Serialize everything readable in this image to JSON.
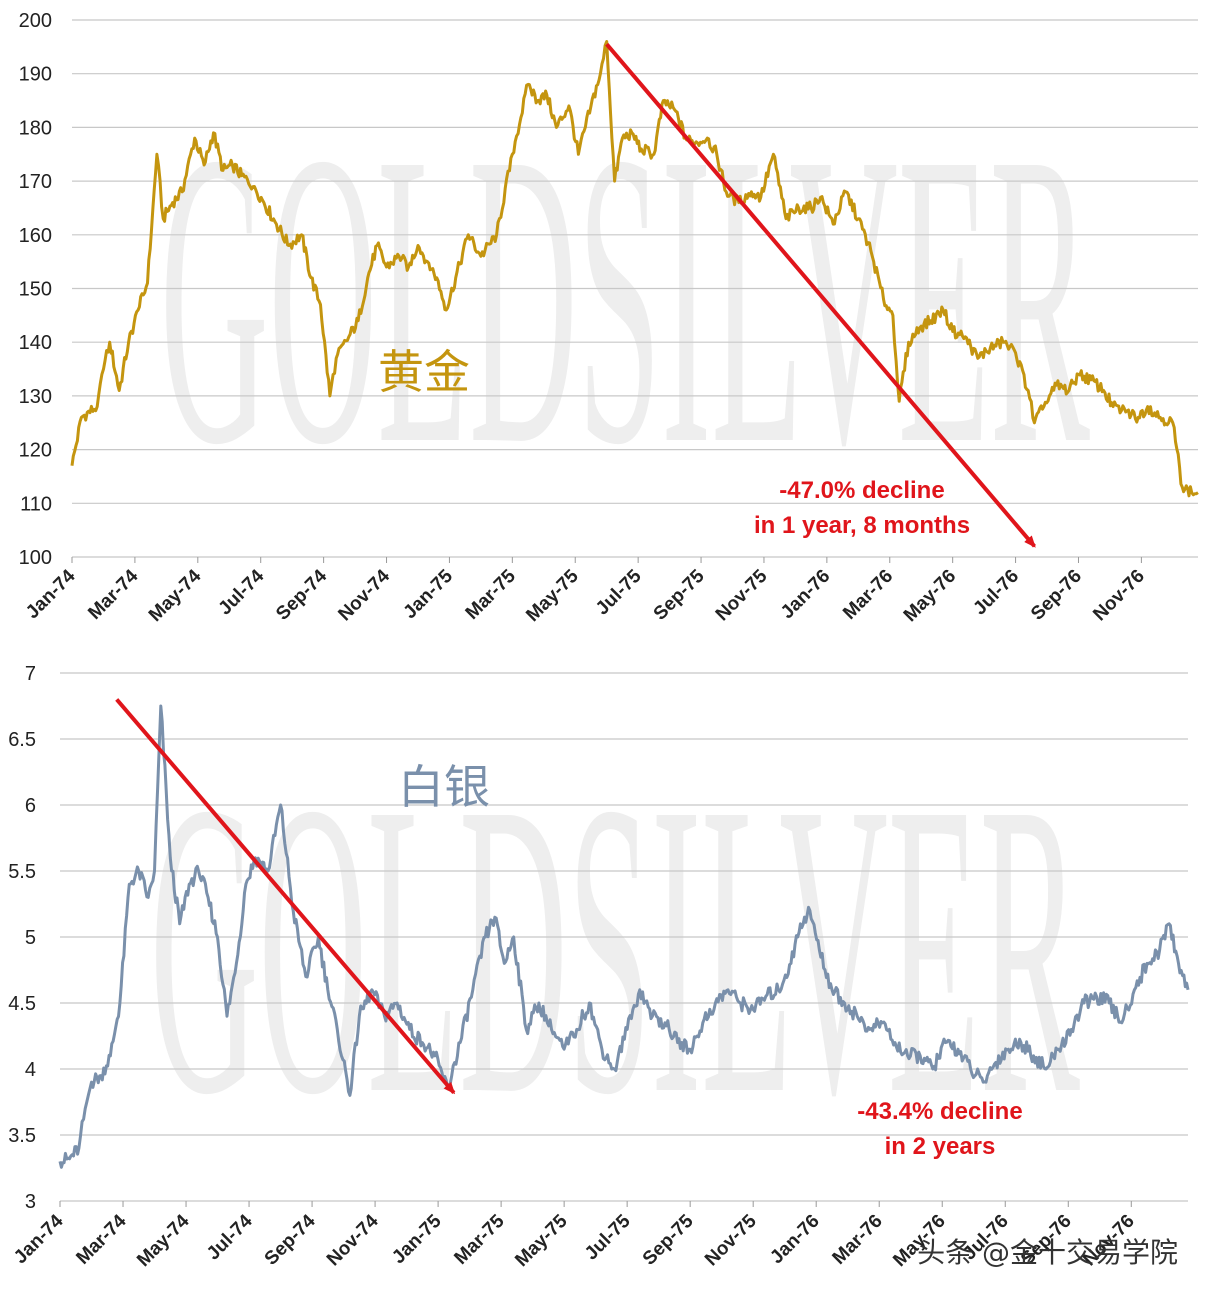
{
  "watermark": "GOLDSILVER",
  "credit": "头条 @金十交易学院",
  "chart_data": [
    {
      "type": "line",
      "id": "gold",
      "label": "黄金",
      "color": "#c4950f",
      "ylim": [
        100,
        200
      ],
      "yticks": [
        "100",
        "110",
        "120",
        "130",
        "140",
        "150",
        "160",
        "170",
        "180",
        "190",
        "200"
      ],
      "xlim": [
        0,
        35.8
      ],
      "xticks": [
        "Jan-74",
        "Mar-74",
        "May-74",
        "Jul-74",
        "Sep-74",
        "Nov-74",
        "Jan-75",
        "Mar-75",
        "May-75",
        "Jul-75",
        "Sep-75",
        "Nov-75",
        "Jan-76",
        "Mar-76",
        "May-76",
        "Jul-76",
        "Sep-76",
        "Nov-76"
      ],
      "x_unit": "months since Jan-74",
      "anchors": [
        [
          0,
          117
        ],
        [
          0.3,
          126
        ],
        [
          0.8,
          128
        ],
        [
          1.0,
          135
        ],
        [
          1.2,
          140
        ],
        [
          1.5,
          131
        ],
        [
          1.8,
          140
        ],
        [
          2.1,
          146
        ],
        [
          2.4,
          151
        ],
        [
          2.7,
          175
        ],
        [
          2.9,
          163
        ],
        [
          3.2,
          166
        ],
        [
          3.5,
          168
        ],
        [
          3.9,
          178
        ],
        [
          4.2,
          173
        ],
        [
          4.5,
          179
        ],
        [
          4.8,
          172
        ],
        [
          5.1,
          173
        ],
        [
          5.4,
          171
        ],
        [
          5.8,
          169
        ],
        [
          6.1,
          166
        ],
        [
          6.5,
          162
        ],
        [
          6.9,
          158
        ],
        [
          7.3,
          160
        ],
        [
          7.6,
          152
        ],
        [
          7.9,
          147
        ],
        [
          8.2,
          130
        ],
        [
          8.4,
          137
        ],
        [
          8.8,
          141
        ],
        [
          9.1,
          144
        ],
        [
          9.4,
          152
        ],
        [
          9.7,
          158
        ],
        [
          10.0,
          154
        ],
        [
          10.4,
          156
        ],
        [
          10.7,
          154
        ],
        [
          11.0,
          158
        ],
        [
          11.3,
          155
        ],
        [
          11.6,
          152
        ],
        [
          11.9,
          146
        ],
        [
          12.2,
          152
        ],
        [
          12.6,
          160
        ],
        [
          13.0,
          156
        ],
        [
          13.5,
          160
        ],
        [
          14.0,
          175
        ],
        [
          14.5,
          188
        ],
        [
          14.8,
          185
        ],
        [
          15.1,
          186
        ],
        [
          15.4,
          180
        ],
        [
          15.8,
          184
        ],
        [
          16.1,
          175
        ],
        [
          16.5,
          184
        ],
        [
          16.8,
          190
        ],
        [
          17.0,
          196
        ],
        [
          17.25,
          170
        ],
        [
          17.5,
          178
        ],
        [
          17.8,
          179
        ],
        [
          18.1,
          176
        ],
        [
          18.5,
          175
        ],
        [
          18.8,
          185
        ],
        [
          19.2,
          183
        ],
        [
          19.5,
          178
        ],
        [
          19.8,
          177
        ],
        [
          20.2,
          178
        ],
        [
          20.5,
          175
        ],
        [
          20.8,
          168
        ],
        [
          21.2,
          166
        ],
        [
          21.6,
          168
        ],
        [
          21.9,
          167
        ],
        [
          22.3,
          175
        ],
        [
          22.7,
          163
        ],
        [
          23.1,
          165
        ],
        [
          23.5,
          165
        ],
        [
          23.8,
          167
        ],
        [
          24.2,
          162
        ],
        [
          24.6,
          168
        ],
        [
          25.0,
          163
        ],
        [
          25.4,
          157
        ],
        [
          25.8,
          148
        ],
        [
          26.1,
          145
        ],
        [
          26.3,
          129
        ],
        [
          26.6,
          140
        ],
        [
          27.0,
          143
        ],
        [
          27.3,
          144
        ],
        [
          27.7,
          146
        ],
        [
          28.0,
          142
        ],
        [
          28.4,
          141
        ],
        [
          28.8,
          137
        ],
        [
          29.2,
          139
        ],
        [
          29.6,
          140
        ],
        [
          30.0,
          138
        ],
        [
          30.4,
          131
        ],
        [
          30.6,
          125
        ],
        [
          30.9,
          128
        ],
        [
          31.3,
          132
        ],
        [
          31.7,
          131
        ],
        [
          32.0,
          134
        ],
        [
          32.4,
          133
        ],
        [
          32.8,
          131
        ],
        [
          33.1,
          128
        ],
        [
          33.5,
          127
        ],
        [
          33.9,
          126
        ],
        [
          34.2,
          128
        ],
        [
          34.6,
          126
        ],
        [
          35.0,
          125
        ],
        [
          35.3,
          113
        ],
        [
          35.6,
          112
        ],
        [
          35.8,
          112
        ]
      ],
      "trend": {
        "from": [
          17.0,
          195.5
        ],
        "to": [
          30.6,
          102
        ]
      },
      "annotation": [
        "-47.0% decline",
        "in 1 year, 8 months"
      ]
    },
    {
      "type": "line",
      "id": "silver",
      "label": "白银",
      "color": "#7a90ab",
      "ylim": [
        3,
        7
      ],
      "yticks": [
        "3",
        "3.5",
        "4",
        "4.5",
        "5",
        "5.5",
        "6",
        "6.5",
        "7"
      ],
      "xlim": [
        0,
        35.8
      ],
      "xticks": [
        "Jan-74",
        "Mar-74",
        "May-74",
        "Jul-74",
        "Sep-74",
        "Nov-74",
        "Jan-75",
        "Mar-75",
        "May-75",
        "Jul-75",
        "Sep-75",
        "Nov-75",
        "Jan-76",
        "Mar-76",
        "May-76",
        "Jul-76",
        "Sep-76",
        "Nov-76"
      ],
      "x_unit": "months since Jan-74",
      "anchors": [
        [
          0,
          3.3
        ],
        [
          0.3,
          3.32
        ],
        [
          0.6,
          3.4
        ],
        [
          0.8,
          3.7
        ],
        [
          1.0,
          3.9
        ],
        [
          1.3,
          3.95
        ],
        [
          1.6,
          4.1
        ],
        [
          1.9,
          4.5
        ],
        [
          2.2,
          5.4
        ],
        [
          2.5,
          5.5
        ],
        [
          2.8,
          5.3
        ],
        [
          3.0,
          5.5
        ],
        [
          3.2,
          6.75
        ],
        [
          3.5,
          5.6
        ],
        [
          3.8,
          5.1
        ],
        [
          4.1,
          5.4
        ],
        [
          4.4,
          5.5
        ],
        [
          4.7,
          5.3
        ],
        [
          5.0,
          5.0
        ],
        [
          5.3,
          4.4
        ],
        [
          5.6,
          4.8
        ],
        [
          5.9,
          5.4
        ],
        [
          6.2,
          5.6
        ],
        [
          6.6,
          5.5
        ],
        [
          7.0,
          6.0
        ],
        [
          7.4,
          5.2
        ],
        [
          7.8,
          4.7
        ],
        [
          8.2,
          5.0
        ],
        [
          8.5,
          4.6
        ],
        [
          8.8,
          4.3
        ],
        [
          9.2,
          3.8
        ],
        [
          9.5,
          4.4
        ],
        [
          9.9,
          4.6
        ],
        [
          10.3,
          4.4
        ],
        [
          10.7,
          4.5
        ],
        [
          11.1,
          4.3
        ],
        [
          11.5,
          4.2
        ],
        [
          11.9,
          4.1
        ],
        [
          12.3,
          3.85
        ],
        [
          12.7,
          4.2
        ],
        [
          13.1,
          4.6
        ],
        [
          13.5,
          5.0
        ],
        [
          13.8,
          5.15
        ],
        [
          14.1,
          4.8
        ],
        [
          14.4,
          5.0
        ],
        [
          14.8,
          4.3
        ],
        [
          15.2,
          4.5
        ],
        [
          15.6,
          4.3
        ],
        [
          16.0,
          4.15
        ],
        [
          16.4,
          4.3
        ],
        [
          16.8,
          4.5
        ],
        [
          17.2,
          4.15
        ],
        [
          17.6,
          4.0
        ],
        [
          18.0,
          4.3
        ],
        [
          18.4,
          4.6
        ],
        [
          18.8,
          4.4
        ],
        [
          19.2,
          4.35
        ],
        [
          19.6,
          4.2
        ],
        [
          20.0,
          4.15
        ],
        [
          20.4,
          4.35
        ],
        [
          20.8,
          4.5
        ],
        [
          21.2,
          4.6
        ],
        [
          21.6,
          4.5
        ],
        [
          22.0,
          4.45
        ],
        [
          22.4,
          4.55
        ],
        [
          22.8,
          4.6
        ],
        [
          23.2,
          4.8
        ],
        [
          23.5,
          5.1
        ],
        [
          23.8,
          5.2
        ],
        [
          24.1,
          4.9
        ],
        [
          24.5,
          4.6
        ],
        [
          24.9,
          4.5
        ],
        [
          25.3,
          4.4
        ],
        [
          25.7,
          4.3
        ],
        [
          26.1,
          4.35
        ],
        [
          26.5,
          4.2
        ],
        [
          26.9,
          4.1
        ],
        [
          27.3,
          4.1
        ],
        [
          27.7,
          4.0
        ],
        [
          28.1,
          4.2
        ],
        [
          28.5,
          4.15
        ],
        [
          28.9,
          4.0
        ],
        [
          29.3,
          3.9
        ],
        [
          29.7,
          4.05
        ],
        [
          30.1,
          4.15
        ],
        [
          30.5,
          4.2
        ],
        [
          30.9,
          4.1
        ],
        [
          31.3,
          4.0
        ],
        [
          31.7,
          4.15
        ],
        [
          32.1,
          4.3
        ],
        [
          32.5,
          4.5
        ],
        [
          32.9,
          4.55
        ],
        [
          33.3,
          4.5
        ],
        [
          33.7,
          4.35
        ],
        [
          34.1,
          4.6
        ],
        [
          34.5,
          4.8
        ],
        [
          34.9,
          4.9
        ],
        [
          35.2,
          5.1
        ],
        [
          35.5,
          4.8
        ],
        [
          35.8,
          4.6
        ]
      ],
      "trend": {
        "from": [
          1.8,
          6.8
        ],
        "to": [
          12.5,
          3.82
        ]
      },
      "annotation": [
        "-43.4% decline",
        "in 2 years"
      ]
    }
  ]
}
